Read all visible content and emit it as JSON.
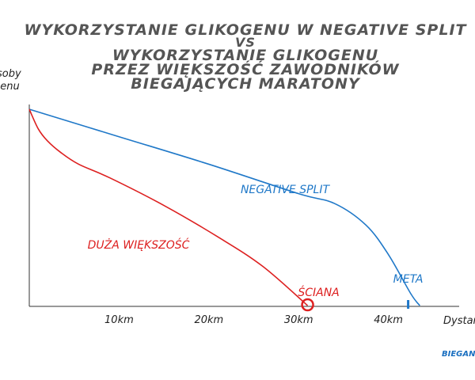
{
  "chart_data": {
    "type": "line",
    "title_lines": [
      "WYKORZYSTANIE GLIKOGENU W NEGATIVE SPLIT",
      "VS",
      "WYKORZYSTANIE GLIKOGENU",
      "PRZEZ WIĘKSZOŚĆ ZAWODNIKÓW",
      "BIEGAJĄCYCH MARATONY"
    ],
    "ylabel_lines": [
      "soby",
      "genu"
    ],
    "xlabel": "Dystan",
    "xlim": [
      0,
      47
    ],
    "ylim": [
      0,
      100
    ],
    "xticks": [
      {
        "value": 10,
        "label": "10km"
      },
      {
        "value": 20,
        "label": "20km"
      },
      {
        "value": 30,
        "label": "30km"
      },
      {
        "value": 40,
        "label": "40km"
      }
    ],
    "series": [
      {
        "name": "NEGATIVE SPLIT",
        "color": "#1f78c8",
        "points": [
          [
            0,
            100
          ],
          [
            10,
            86
          ],
          [
            20,
            72
          ],
          [
            30,
            57
          ],
          [
            34,
            52
          ],
          [
            37.5,
            41
          ],
          [
            40,
            26
          ],
          [
            42.5,
            6
          ],
          [
            43.5,
            0
          ]
        ]
      },
      {
        "name": "DUŻA WIĘKSZOŚĆ",
        "color": "#dd2020",
        "points": [
          [
            0,
            100
          ],
          [
            1,
            90
          ],
          [
            2,
            84
          ],
          [
            3.5,
            78
          ],
          [
            5.5,
            72
          ],
          [
            9,
            65
          ],
          [
            15,
            51
          ],
          [
            21,
            35
          ],
          [
            26,
            20
          ],
          [
            31,
            0
          ]
        ]
      }
    ],
    "annotations": [
      {
        "text": "ŚCIANA",
        "x": 31,
        "y": 0,
        "marker": "circle",
        "color": "#dd2020"
      },
      {
        "text": "META",
        "x": 42.2,
        "y": 0,
        "marker": "tick",
        "color": "#1f78c8"
      }
    ],
    "brand": "BIEGANIE",
    "grid": false
  }
}
